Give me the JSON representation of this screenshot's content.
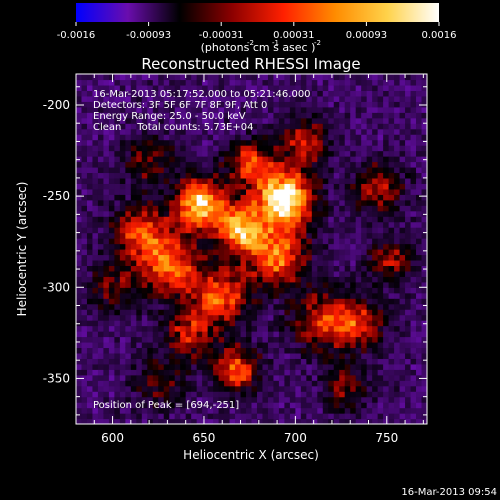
{
  "chart_data": {
    "type": "heatmap",
    "title": "Reconstructed RHESSI Image",
    "xlabel": "Heliocentric X (arcsec)",
    "ylabel": "Heliocentric Y (arcsec)",
    "xlim": [
      580,
      772
    ],
    "ylim": [
      -375,
      -183
    ],
    "x_ticks": [
      600,
      650,
      700,
      750
    ],
    "y_ticks": [
      -200,
      -250,
      -300,
      -350
    ],
    "colorbar": {
      "range": [
        -0.0016,
        0.0016
      ],
      "ticks": [
        "-0.0016",
        "-0.00093",
        "-0.00031",
        "0.00031",
        "0.00093",
        "0.0016"
      ],
      "unit_label": "(photons cm  s  asec )",
      "unit_exponents": [
        "-2",
        "-1",
        "-2"
      ],
      "colors": [
        "#0000ff",
        "#6a0dad",
        "#000000",
        "#8b0000",
        "#ff2000",
        "#ff8c00",
        "#ffd24a",
        "#ffffff"
      ]
    },
    "annotations": [
      "16-Mar-2013 05:17:52.000 to 05:21:46.000",
      "Detectors: 3F 5F 6F 7F 8F 9F, Att 0",
      "Energy Range: 25.0 - 50.0 keV",
      "Clean     Total counts: 5.73E+04"
    ],
    "peak_label": "Position of Peak = [694,-251]",
    "peak": [
      694,
      -251
    ],
    "sources": [
      {
        "x": 694,
        "y": -251,
        "amp": 1.0,
        "sigma": 11
      },
      {
        "x": 648,
        "y": -254,
        "amp": 0.85,
        "sigma": 10
      },
      {
        "x": 670,
        "y": -268,
        "amp": 0.75,
        "sigma": 9
      },
      {
        "x": 615,
        "y": -270,
        "amp": 0.55,
        "sigma": 11
      },
      {
        "x": 632,
        "y": -288,
        "amp": 0.6,
        "sigma": 12
      },
      {
        "x": 690,
        "y": -283,
        "amp": 0.65,
        "sigma": 12
      },
      {
        "x": 705,
        "y": -220,
        "amp": 0.45,
        "sigma": 10
      },
      {
        "x": 675,
        "y": -232,
        "amp": 0.55,
        "sigma": 9
      },
      {
        "x": 660,
        "y": -305,
        "amp": 0.6,
        "sigma": 11
      },
      {
        "x": 642,
        "y": -325,
        "amp": 0.45,
        "sigma": 10
      },
      {
        "x": 668,
        "y": -345,
        "amp": 0.6,
        "sigma": 9
      },
      {
        "x": 715,
        "y": -318,
        "amp": 0.5,
        "sigma": 12
      },
      {
        "x": 745,
        "y": -245,
        "amp": 0.45,
        "sigma": 10
      },
      {
        "x": 752,
        "y": -285,
        "amp": 0.4,
        "sigma": 9
      },
      {
        "x": 735,
        "y": -320,
        "amp": 0.45,
        "sigma": 10
      },
      {
        "x": 620,
        "y": -230,
        "amp": 0.35,
        "sigma": 10
      },
      {
        "x": 600,
        "y": -300,
        "amp": 0.3,
        "sigma": 10
      },
      {
        "x": 728,
        "y": -355,
        "amp": 0.35,
        "sigma": 9
      },
      {
        "x": 625,
        "y": -352,
        "amp": 0.3,
        "sigma": 10
      }
    ]
  },
  "footer_timestamp": "16-Mar-2013 09:54"
}
